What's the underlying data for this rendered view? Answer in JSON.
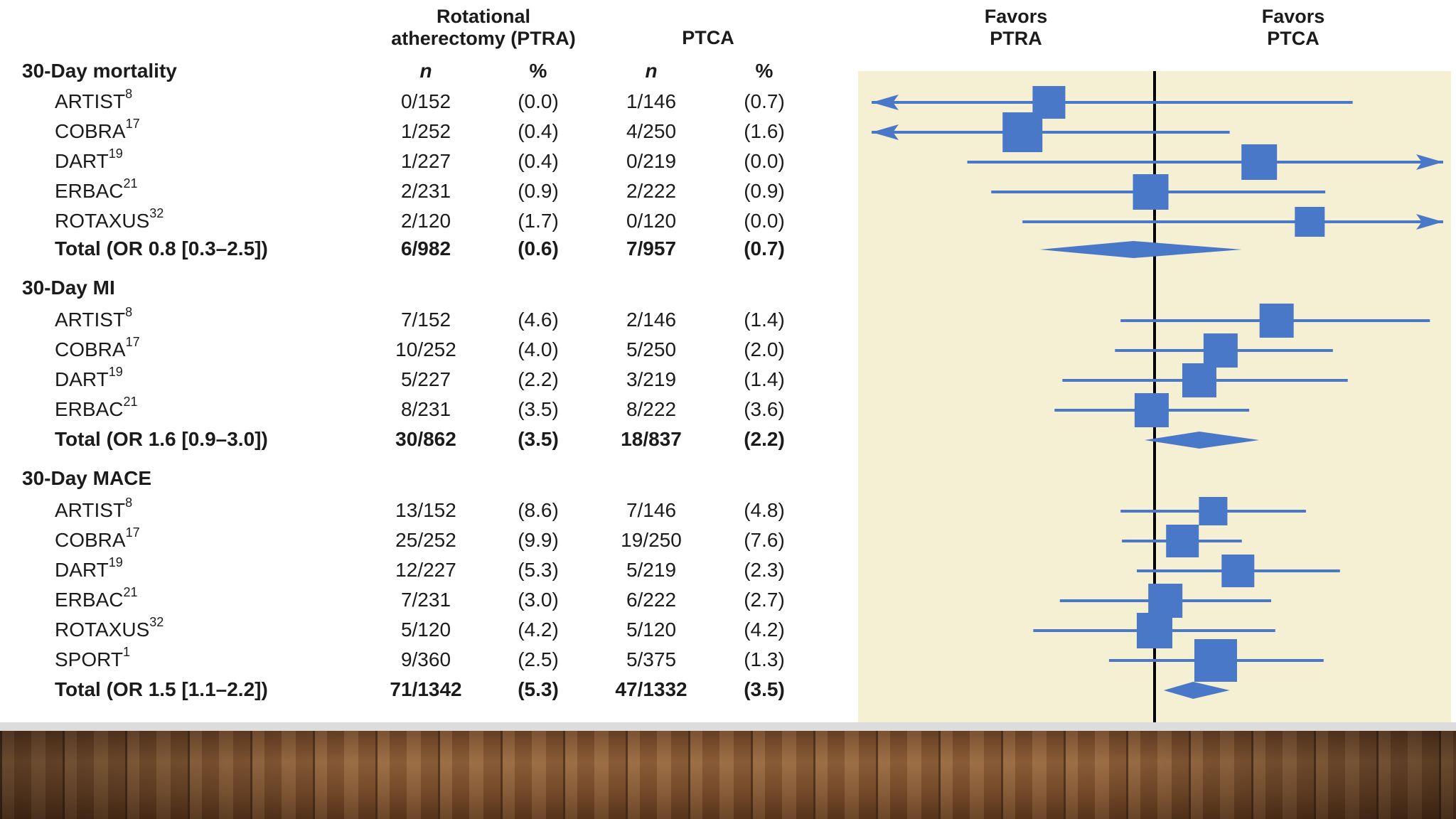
{
  "headers": {
    "group1_line1": "Rotational",
    "group1_line2": "atherectomy (PTRA)",
    "group2": "PTCA",
    "favors_left_line1": "Favors",
    "favors_left_line2": "PTRA",
    "favors_right_line1": "Favors",
    "favors_right_line2": "PTCA",
    "n": "n",
    "pct": "%"
  },
  "colors": {
    "marker": "#4a78c8",
    "panel": "#f5f0d3",
    "reference_line": "#000000"
  },
  "chart_data": {
    "type": "forest",
    "axis": "log odds ratio, reference line at 1",
    "sections": [
      {
        "title": "30-Day mortality",
        "rows": [
          {
            "study": "ARTIST",
            "ref": "8",
            "ptra": "0/152",
            "ptra_pct": "(0.0)",
            "ptca": "1/146",
            "ptca_pct": "(0.7)",
            "or": 0.33,
            "lo": 0.05,
            "hi": 8.0,
            "lo_arrow": true,
            "hi_arrow": false,
            "weight": 0.55
          },
          {
            "study": "COBRA",
            "ref": "17",
            "ptra": "1/252",
            "ptra_pct": "(0.4)",
            "ptca": "4/250",
            "ptca_pct": "(1.6)",
            "or": 0.25,
            "lo": 0.05,
            "hi": 2.2,
            "lo_arrow": true,
            "hi_arrow": false,
            "weight": 0.8
          },
          {
            "study": "DART",
            "ref": "19",
            "ptra": "1/227",
            "ptra_pct": "(0.4)",
            "ptca": "0/219",
            "ptca_pct": "(0.0)",
            "or": 3.0,
            "lo": 0.14,
            "hi": 20.0,
            "lo_arrow": false,
            "hi_arrow": true,
            "weight": 0.65
          },
          {
            "study": "ERBAC",
            "ref": "21",
            "ptra": "2/231",
            "ptra_pct": "(0.9)",
            "ptca": "2/222",
            "ptca_pct": "(0.9)",
            "or": 0.96,
            "lo": 0.18,
            "hi": 6.0,
            "lo_arrow": false,
            "hi_arrow": false,
            "weight": 0.65
          },
          {
            "study": "ROTAXUS",
            "ref": "32",
            "ptra": "2/120",
            "ptra_pct": "(1.7)",
            "ptca": "0/120",
            "ptca_pct": "(0.0)",
            "or": 5.1,
            "lo": 0.25,
            "hi": 20.0,
            "lo_arrow": false,
            "hi_arrow": true,
            "weight": 0.45
          }
        ],
        "total": {
          "label": "Total (OR 0.8 [0.3–2.5])",
          "ptra": "6/982",
          "ptra_pct": "(0.6)",
          "ptca": "7/957",
          "ptca_pct": "(0.7)",
          "or": 0.8,
          "lo": 0.3,
          "hi": 2.5
        }
      },
      {
        "title": "30-Day MI",
        "rows": [
          {
            "study": "ARTIST",
            "ref": "8",
            "ptra": "7/152",
            "ptra_pct": "(4.6)",
            "ptca": "2/146",
            "ptca_pct": "(1.4)",
            "or": 3.6,
            "lo": 0.7,
            "hi": 18.0,
            "lo_arrow": false,
            "hi_arrow": false,
            "weight": 0.6
          },
          {
            "study": "COBRA",
            "ref": "17",
            "ptra": "10/252",
            "ptra_pct": "(4.0)",
            "ptca": "5/250",
            "ptca_pct": "(2.0)",
            "or": 2.0,
            "lo": 0.66,
            "hi": 6.5,
            "lo_arrow": false,
            "hi_arrow": false,
            "weight": 0.6
          },
          {
            "study": "DART",
            "ref": "19",
            "ptra": "5/227",
            "ptra_pct": "(2.2)",
            "ptca": "3/219",
            "ptca_pct": "(1.4)",
            "or": 1.6,
            "lo": 0.38,
            "hi": 7.6,
            "lo_arrow": false,
            "hi_arrow": false,
            "weight": 0.6
          },
          {
            "study": "ERBAC",
            "ref": "21",
            "ptra": "8/231",
            "ptra_pct": "(3.5)",
            "ptca": "8/222",
            "ptca_pct": "(3.6)",
            "or": 0.97,
            "lo": 0.35,
            "hi": 2.7,
            "lo_arrow": false,
            "hi_arrow": false,
            "weight": 0.6
          }
        ],
        "total": {
          "label": "Total (OR 1.6 [0.9–3.0])",
          "ptra": "30/862",
          "ptra_pct": "(3.5)",
          "ptca": "18/837",
          "ptca_pct": "(2.2)",
          "or": 1.6,
          "lo": 0.9,
          "hi": 3.0
        }
      },
      {
        "title": "30-Day MACE",
        "rows": [
          {
            "study": "ARTIST",
            "ref": "8",
            "ptra": "13/152",
            "ptra_pct": "(8.6)",
            "ptca": "7/146",
            "ptca_pct": "(4.8)",
            "or": 1.85,
            "lo": 0.7,
            "hi": 4.9,
            "lo_arrow": false,
            "hi_arrow": false,
            "weight": 0.4
          },
          {
            "study": "COBRA",
            "ref": "17",
            "ptra": "25/252",
            "ptra_pct": "(9.9)",
            "ptca": "19/250",
            "ptca_pct": "(7.6)",
            "or": 1.34,
            "lo": 0.71,
            "hi": 2.5,
            "lo_arrow": false,
            "hi_arrow": false,
            "weight": 0.55
          },
          {
            "study": "DART",
            "ref": "19",
            "ptra": "12/227",
            "ptra_pct": "(5.3)",
            "ptca": "5/219",
            "ptca_pct": "(2.3)",
            "or": 2.4,
            "lo": 0.83,
            "hi": 7.0,
            "lo_arrow": false,
            "hi_arrow": false,
            "weight": 0.55
          },
          {
            "study": "ERBAC",
            "ref": "21",
            "ptra": "7/231",
            "ptra_pct": "(3.0)",
            "ptca": "6/222",
            "ptca_pct": "(2.7)",
            "or": 1.12,
            "lo": 0.37,
            "hi": 3.4,
            "lo_arrow": false,
            "hi_arrow": false,
            "weight": 0.6
          },
          {
            "study": "ROTAXUS",
            "ref": "32",
            "ptra": "5/120",
            "ptra_pct": "(4.2)",
            "ptca": "5/120",
            "ptca_pct": "(4.2)",
            "or": 1.0,
            "lo": 0.28,
            "hi": 3.55,
            "lo_arrow": false,
            "hi_arrow": false,
            "weight": 0.65
          },
          {
            "study": "SPORT",
            "ref": "1",
            "ptra": "9/360",
            "ptra_pct": "(2.5)",
            "ptca": "5/375",
            "ptca_pct": "(1.3)",
            "or": 1.9,
            "lo": 0.62,
            "hi": 5.9,
            "lo_arrow": false,
            "hi_arrow": false,
            "weight": 0.9
          }
        ],
        "total": {
          "label": "Total (OR 1.5 [1.1–2.2])",
          "ptra": "71/1342",
          "ptra_pct": "(5.3)",
          "ptca": "47/1332",
          "ptca_pct": "(3.5)",
          "or": 1.5,
          "lo": 1.1,
          "hi": 2.2
        }
      }
    ]
  }
}
